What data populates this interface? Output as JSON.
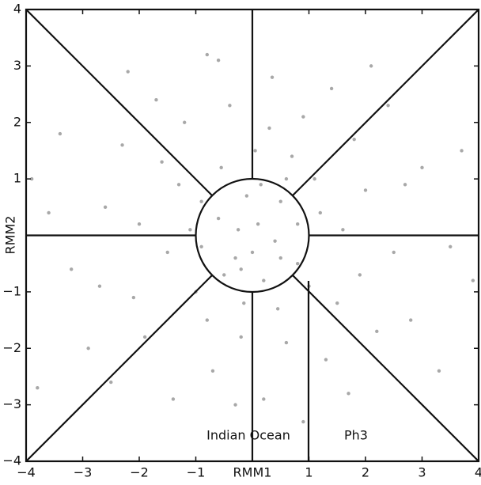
{
  "chart_data": {
    "type": "scatter",
    "xlabel": "RMM1",
    "ylabel": "RMM2",
    "annotations": [
      "Indian Ocean",
      "Ph3"
    ],
    "xlim": [
      -4,
      4
    ],
    "ylim": [
      -4,
      4
    ],
    "xticks": [
      {
        "value": -4,
        "label": "−4"
      },
      {
        "value": -3,
        "label": "−3"
      },
      {
        "value": -2,
        "label": "−2"
      },
      {
        "value": -1,
        "label": "−1"
      },
      1,
      2,
      3,
      4
    ],
    "yticks": [
      {
        "value": -4,
        "label": "−4"
      },
      {
        "value": -3,
        "label": "−3"
      },
      {
        "value": -2,
        "label": "−2"
      },
      {
        "value": -1,
        "label": "−1"
      },
      1,
      2,
      3,
      4
    ],
    "color": "#a8a8a8",
    "x": [
      0.1,
      -0.3,
      0.5,
      -0.6,
      0.8,
      -0.9,
      1.2,
      -1.3,
      0.2,
      -0.1,
      0.4,
      -0.5,
      1.5,
      -1.6,
      2.0,
      -2.1,
      0.7,
      -0.8,
      0.3,
      -0.2,
      1.0,
      -1.1,
      2.5,
      -2.6,
      3.0,
      -3.2,
      0.6,
      -0.4,
      1.8,
      -1.9,
      0.9,
      -0.7,
      1.3,
      -1.2,
      0.0,
      0.15,
      -0.25,
      2.2,
      -2.3,
      1.6,
      -1.5,
      0.45,
      -0.55,
      3.5,
      -3.6,
      2.8,
      -2.9,
      1.1,
      -1.0,
      0.35,
      -0.6,
      0.2,
      -0.3,
      1.4,
      -1.7,
      2.4,
      -2.5,
      3.3,
      -3.8,
      3.7,
      -3.4,
      0.8,
      -0.9,
      0.5,
      -0.2,
      1.9,
      -2.0,
      0.05,
      -0.15,
      2.7,
      -2.7,
      1.7,
      -1.4,
      0.9,
      -0.8,
      3.9,
      -3.9,
      2.1,
      -2.2,
      0.6
    ],
    "y": [
      0.2,
      -0.4,
      0.6,
      0.3,
      -0.5,
      -0.2,
      0.4,
      0.9,
      -0.8,
      0.7,
      -0.1,
      -0.7,
      -1.2,
      1.3,
      0.8,
      -1.1,
      1.4,
      -1.5,
      1.9,
      -1.8,
      -0.9,
      0.1,
      -0.3,
      0.5,
      1.2,
      -0.6,
      -1.9,
      2.3,
      1.7,
      -1.8,
      2.1,
      -2.4,
      -2.2,
      2.0,
      -0.3,
      0.9,
      0.1,
      -1.7,
      1.6,
      0.1,
      -0.3,
      -1.3,
      1.2,
      -0.2,
      0.4,
      -1.5,
      -2.0,
      1.0,
      -1.0,
      2.8,
      3.1,
      -2.9,
      -3.0,
      2.6,
      2.4,
      2.3,
      -2.6,
      -2.4,
      -2.7,
      1.5,
      1.8,
      0.2,
      0.6,
      -0.4,
      -0.6,
      -0.7,
      0.2,
      1.5,
      -1.2,
      0.9,
      -0.9,
      -2.8,
      -2.9,
      -3.3,
      3.2,
      -0.8,
      1.0,
      3.0,
      2.9,
      1.0
    ]
  }
}
